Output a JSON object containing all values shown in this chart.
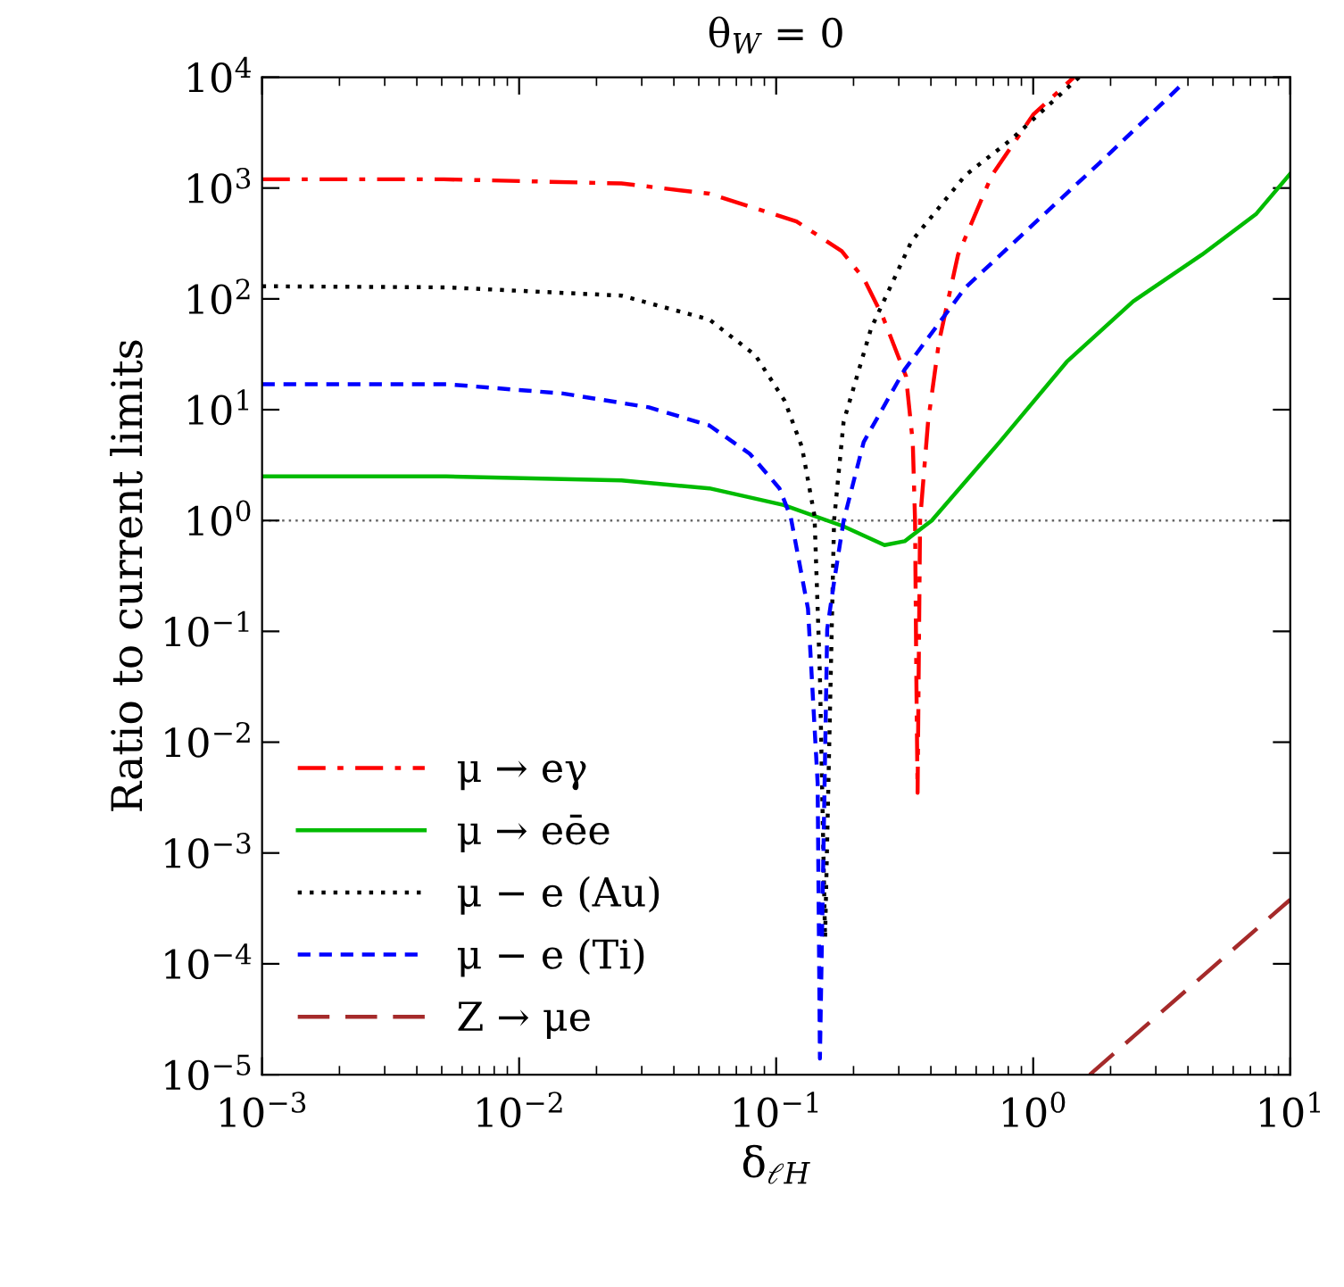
{
  "chart_data": {
    "type": "line",
    "title": "θ$_{W}$ = 0",
    "xlabel": "δ$_{ℓH}$",
    "ylabel": "Ratio to current limits",
    "log": "xy",
    "xlim": [
      0.001,
      10
    ],
    "ylim": [
      1e-05,
      10000
    ],
    "xticks": [
      {
        "value": 0.001,
        "label": "10$^{−3}$"
      },
      {
        "value": 0.01,
        "label": "10$^{−2}$"
      },
      {
        "value": 0.1,
        "label": "10$^{−1}$"
      },
      {
        "value": 1,
        "label": "10$^{0}$"
      },
      {
        "value": 10,
        "label": "10$^{1}$"
      }
    ],
    "yticks": [
      {
        "value": 1e-05,
        "label": "10$^{−5}$"
      },
      {
        "value": 0.0001,
        "label": "10$^{−4}$"
      },
      {
        "value": 0.001,
        "label": "10$^{−3}$"
      },
      {
        "value": 0.01,
        "label": "10$^{−2}$"
      },
      {
        "value": 0.1,
        "label": "10$^{−1}$"
      },
      {
        "value": 1,
        "label": "10$^{0}$"
      },
      {
        "value": 10,
        "label": "10$^{1}$"
      },
      {
        "value": 100,
        "label": "10$^{2}$"
      },
      {
        "value": 1000,
        "label": "10$^{3}$"
      },
      {
        "value": 10000,
        "label": "10$^{4}$"
      }
    ],
    "legend": "bottom left",
    "grid": false,
    "marker": "none",
    "ref_lines": [
      {
        "axis": "y",
        "value": 1,
        "color": "#666666",
        "line_style": "dotted"
      }
    ],
    "series": [
      {
        "name": "μ → eγ",
        "color": "#ff0000",
        "line_style": "dashdot",
        "x": [
          0.001,
          0.0051,
          0.025,
          0.055,
          0.12,
          0.18,
          0.22,
          0.26,
          0.32,
          0.34,
          0.347,
          0.351,
          0.355,
          0.363,
          0.39,
          0.43,
          0.51,
          0.69,
          1.0,
          1.44
        ],
        "values": [
          1200,
          1200,
          1100,
          890,
          500,
          270,
          150,
          69,
          20,
          5.1,
          1,
          0.04,
          0.0035,
          1,
          7.8,
          41,
          250,
          1300,
          4600,
          10000
        ]
      },
      {
        "name": "μ → eēe",
        "color": "#00bb00",
        "line_style": "solid",
        "x": [
          0.001,
          0.0052,
          0.025,
          0.055,
          0.107,
          0.182,
          0.264,
          0.316,
          0.403,
          0.74,
          1.35,
          2.45,
          4.53,
          7.35,
          10
        ],
        "values": [
          2.5,
          2.5,
          2.3,
          1.95,
          1.38,
          0.89,
          0.6,
          0.65,
          1.0,
          5.1,
          27,
          95,
          250,
          580,
          1350
        ]
      },
      {
        "name": "μ − e (Au)",
        "color": "#000000",
        "line_style": "dotted",
        "x": [
          0.001,
          0.0052,
          0.025,
          0.055,
          0.083,
          0.108,
          0.126,
          0.141,
          0.148,
          0.155,
          0.168,
          0.183,
          0.234,
          0.336,
          0.544,
          0.83,
          1.51
        ],
        "values": [
          130,
          127,
          107,
          65,
          31,
          12,
          4.6,
          1.1,
          0.04,
          0.00017,
          1.0,
          7.8,
          54,
          330,
          1300,
          2800,
          10000
        ]
      },
      {
        "name": "μ − e (Ti)",
        "color": "#0000ff",
        "line_style": "dashed",
        "x": [
          0.001,
          0.0052,
          0.0148,
          0.032,
          0.055,
          0.079,
          0.103,
          0.114,
          0.133,
          0.145,
          0.148,
          0.158,
          0.168,
          0.183,
          0.219,
          0.316,
          0.544,
          1.0,
          1.82,
          3.89
        ],
        "values": [
          17,
          17,
          14,
          10.5,
          7.2,
          4.0,
          1.95,
          1.07,
          0.16,
          0.0043,
          1.4e-05,
          0.105,
          0.28,
          1.0,
          5.1,
          23,
          126,
          470,
          1700,
          9100
        ]
      },
      {
        "name": "Z → μe",
        "color": "#a52a2a",
        "line_style": "longdash",
        "x": [
          1.66,
          10
        ],
        "values": [
          1e-05,
          0.00038
        ]
      }
    ]
  }
}
